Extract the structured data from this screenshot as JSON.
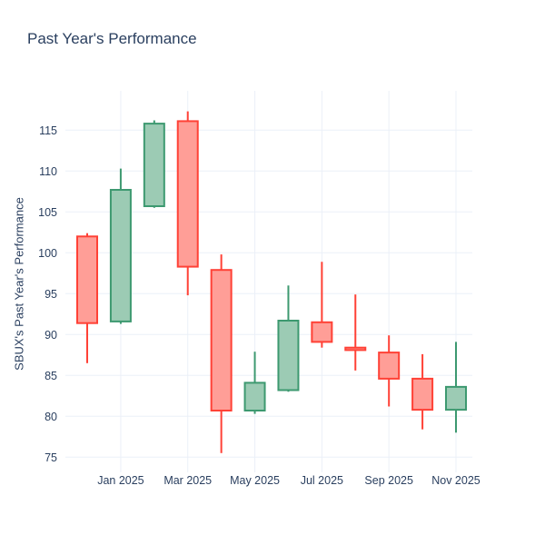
{
  "figure": {
    "title": "Past Year's Performance"
  },
  "chart_data": {
    "type": "candlestick",
    "title": "Past Year's Performance",
    "xlabel": "",
    "ylabel": "SBUX's Past Year's Performance",
    "x_tick_labels": [
      "Jan 2025",
      "Mar 2025",
      "May 2025",
      "Jul 2025",
      "Sep 2025",
      "Nov 2025"
    ],
    "x_tick_indices": [
      1,
      3,
      5,
      7,
      9,
      11
    ],
    "y_ticks": [
      75,
      80,
      85,
      90,
      95,
      100,
      105,
      110,
      115
    ],
    "ylim": [
      73.1,
      119.8
    ],
    "grid": true,
    "legend_position": "none",
    "colors": {
      "increasing_line": "#3D9970",
      "increasing_fill": "#9CCBB4",
      "decreasing_line": "#FF4136",
      "decreasing_fill": "#FF9E97",
      "gridline": "#EBF0F8",
      "text": "#2a3f5f",
      "background": "#ffffff"
    },
    "series": [
      {
        "month": "Dec 2024",
        "open": 102.0,
        "high": 102.4,
        "low": 86.5,
        "close": 91.4
      },
      {
        "month": "Jan 2025",
        "open": 91.6,
        "high": 110.3,
        "low": 91.3,
        "close": 107.7
      },
      {
        "month": "Feb 2025",
        "open": 105.7,
        "high": 116.2,
        "low": 105.5,
        "close": 115.8
      },
      {
        "month": "Mar 2025",
        "open": 116.1,
        "high": 117.3,
        "low": 94.8,
        "close": 98.3
      },
      {
        "month": "Apr 2025",
        "open": 97.9,
        "high": 99.8,
        "low": 75.5,
        "close": 80.7
      },
      {
        "month": "May 2025",
        "open": 80.7,
        "high": 87.9,
        "low": 80.3,
        "close": 84.1
      },
      {
        "month": "Jun 2025",
        "open": 83.2,
        "high": 96.0,
        "low": 83.0,
        "close": 91.7
      },
      {
        "month": "Jul 2025",
        "open": 91.5,
        "high": 98.9,
        "low": 88.4,
        "close": 89.1
      },
      {
        "month": "Aug 2025",
        "open": 88.4,
        "high": 94.9,
        "low": 85.6,
        "close": 88.1
      },
      {
        "month": "Sep 2025",
        "open": 87.8,
        "high": 89.9,
        "low": 81.2,
        "close": 84.6
      },
      {
        "month": "Oct 2025",
        "open": 84.6,
        "high": 87.6,
        "low": 78.4,
        "close": 80.8
      },
      {
        "month": "Nov 2025",
        "open": 80.8,
        "high": 89.1,
        "low": 78.0,
        "close": 83.6
      }
    ]
  }
}
